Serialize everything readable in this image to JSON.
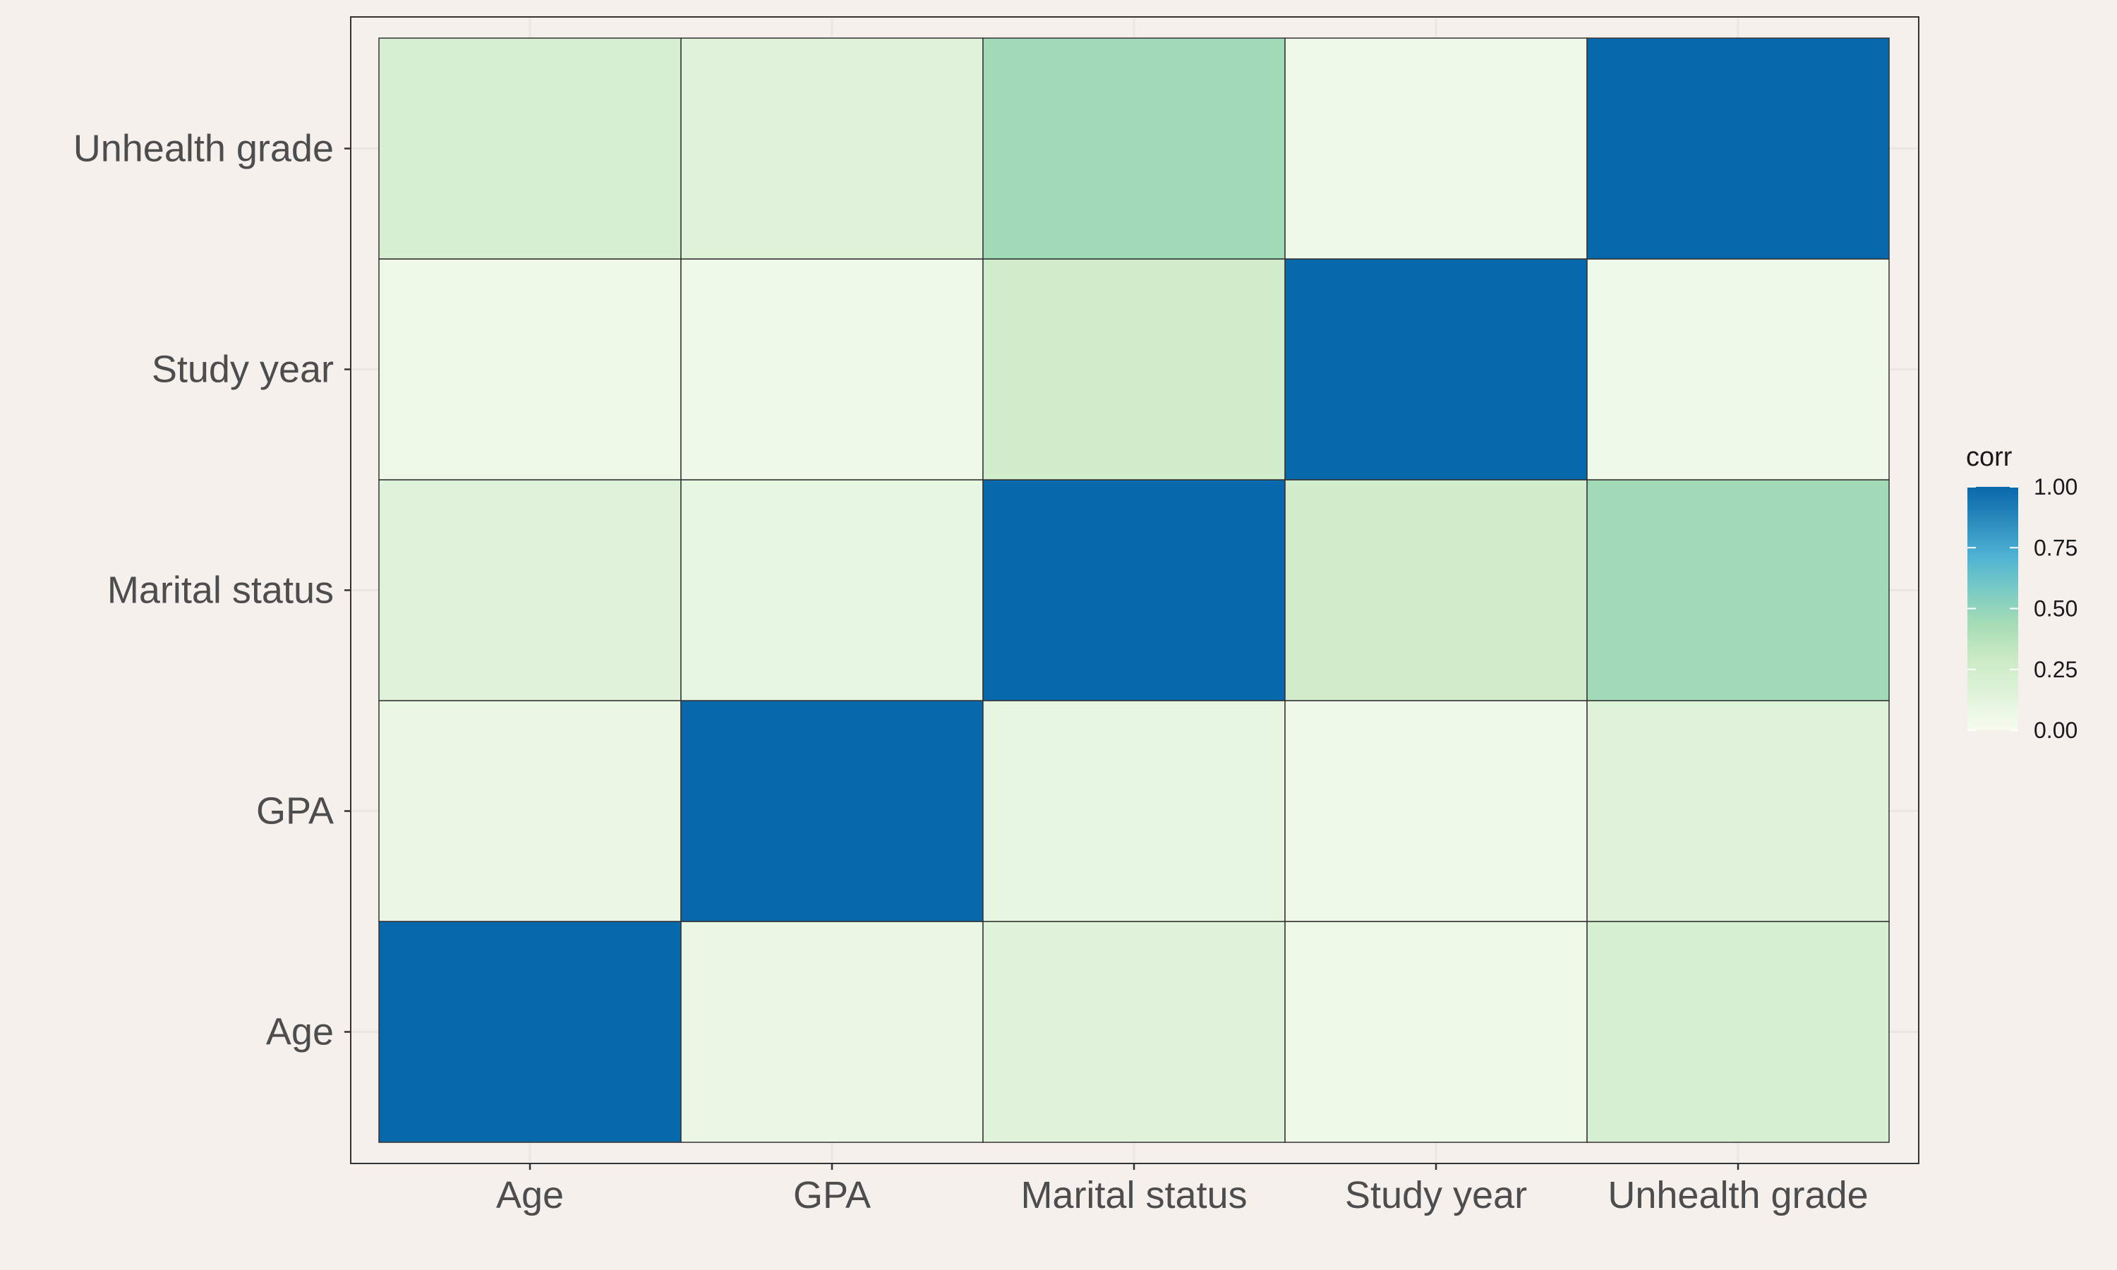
{
  "chart_data": {
    "type": "heatmap",
    "x_categories": [
      "Age",
      "GPA",
      "Marital status",
      "Study year",
      "Unhealth grade"
    ],
    "y_categories": [
      "Age",
      "GPA",
      "Marital status",
      "Study year",
      "Unhealth grade"
    ],
    "matrix": [
      [
        1.0,
        0.08,
        0.15,
        0.06,
        0.2
      ],
      [
        0.08,
        1.0,
        0.1,
        0.05,
        0.15
      ],
      [
        0.15,
        0.1,
        1.0,
        0.25,
        0.45
      ],
      [
        0.06,
        0.05,
        0.25,
        1.0,
        0.05
      ],
      [
        0.2,
        0.15,
        0.45,
        0.05,
        1.0
      ]
    ],
    "legend": {
      "title": "corr",
      "ticks": [
        1.0,
        0.75,
        0.5,
        0.25,
        0.0
      ],
      "tick_labels": [
        "1.00",
        "0.75",
        "0.50",
        "0.25",
        "0.00"
      ],
      "range": [
        0,
        1
      ],
      "placement": "right"
    },
    "color_scale": [
      "#F7FCF0",
      "#E0F3DB",
      "#CCEBC5",
      "#A8DDB5",
      "#7BCCC4",
      "#4EB3D3",
      "#2B8CBE",
      "#0868AC"
    ],
    "grid": true,
    "title": "",
    "xlabel": "",
    "ylabel": ""
  }
}
